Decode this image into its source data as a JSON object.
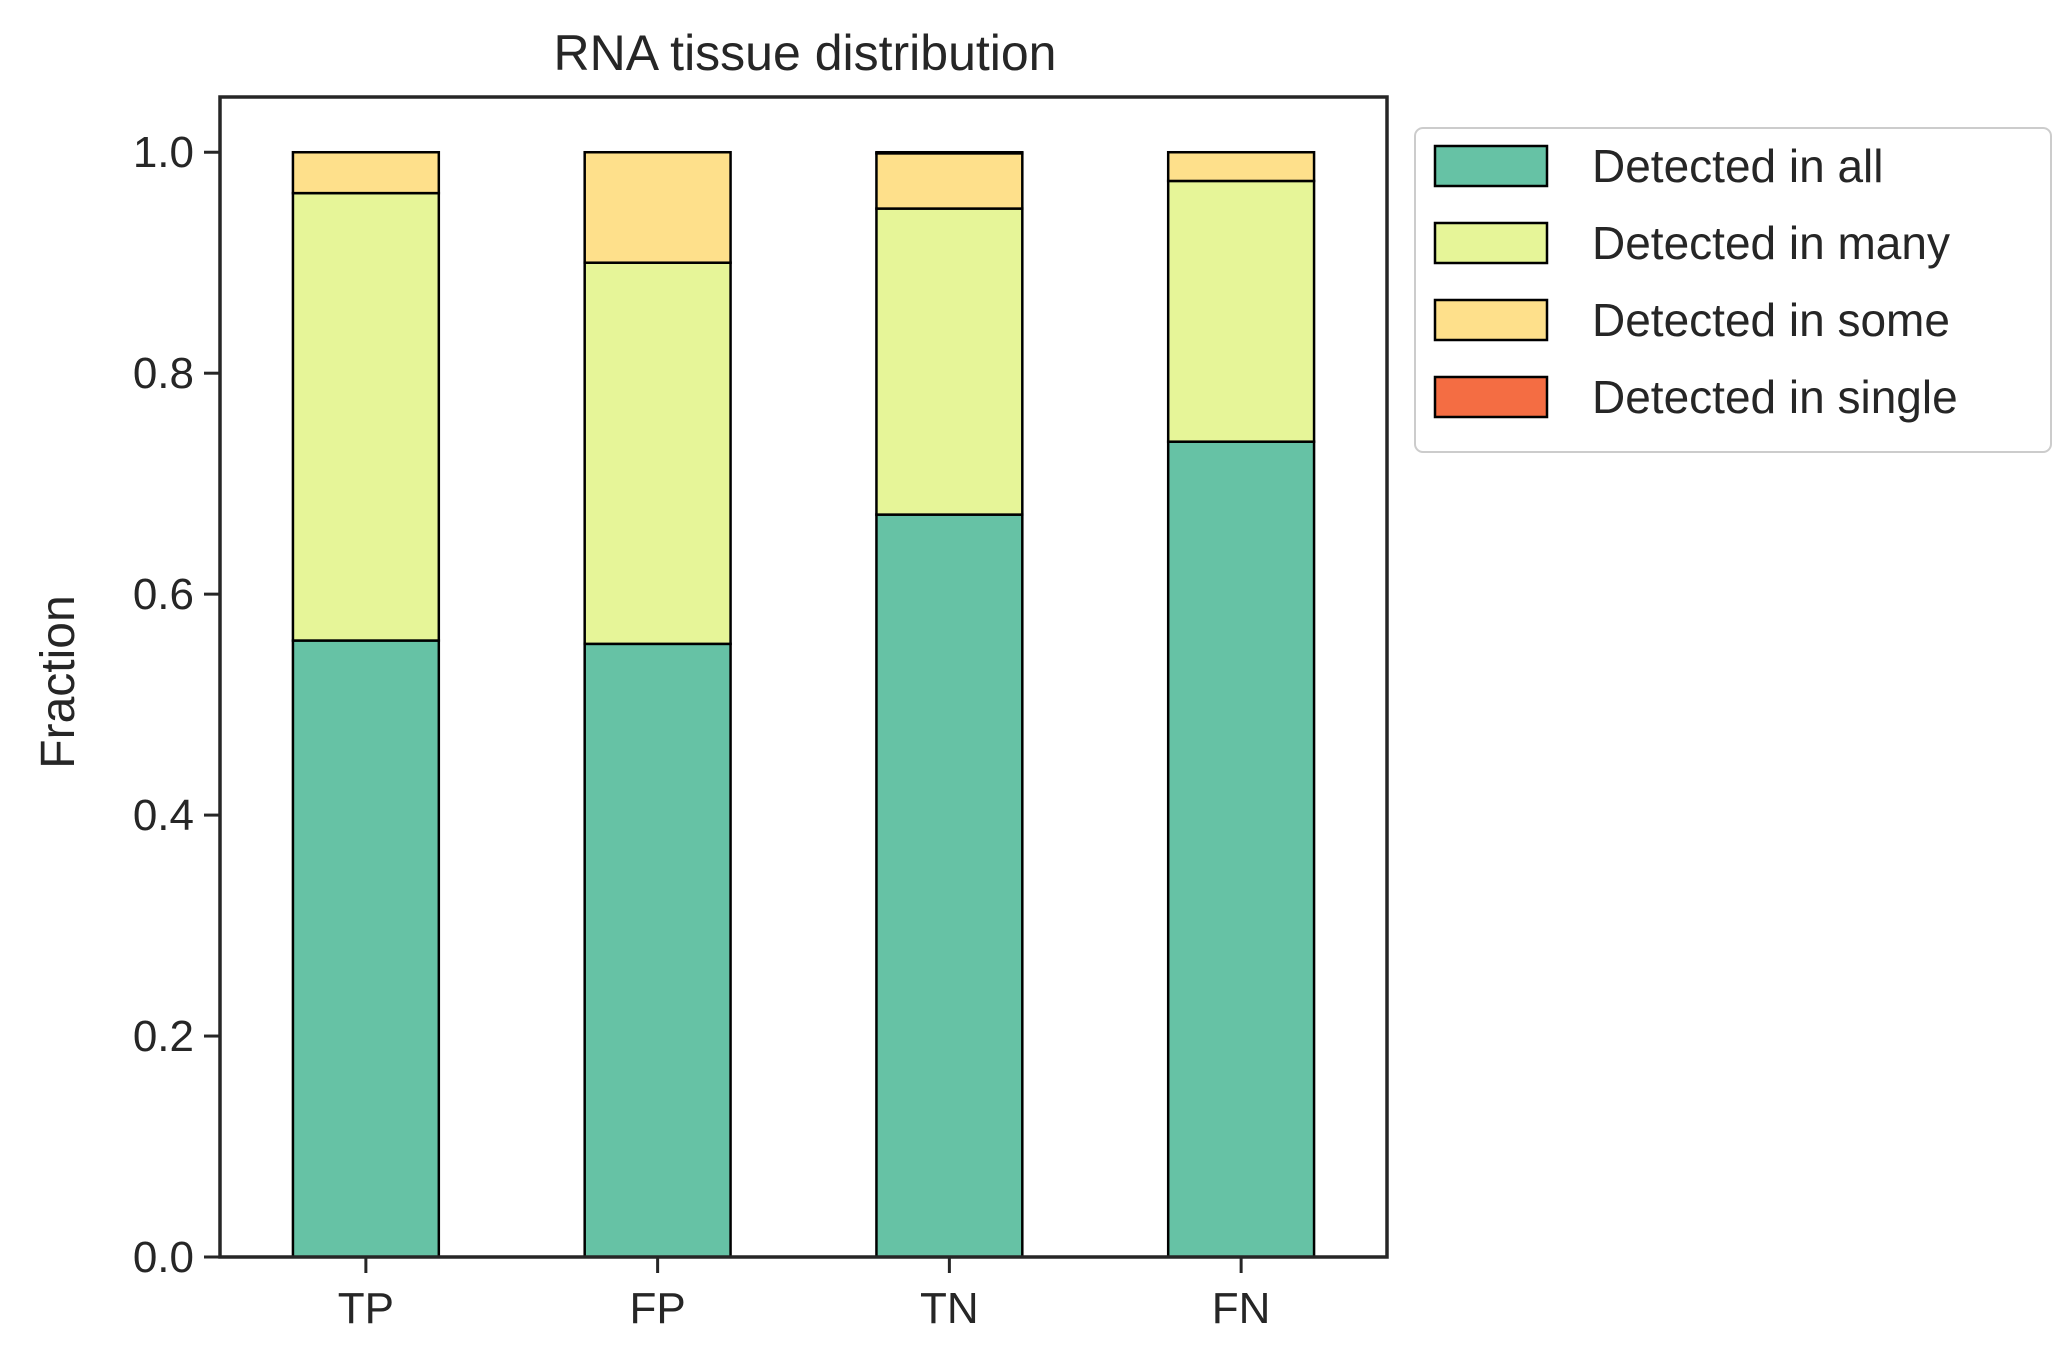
{
  "chart_data": {
    "type": "bar",
    "stacked": true,
    "title": "RNA tissue distribution",
    "xlabel": "",
    "ylabel": "Fraction",
    "categories": [
      "TP",
      "FP",
      "TN",
      "FN"
    ],
    "ylim": [
      0,
      1.05
    ],
    "yticks": [
      0.0,
      0.2,
      0.4,
      0.6,
      0.8,
      1.0
    ],
    "ytick_labels": [
      "0.0",
      "0.2",
      "0.4",
      "0.6",
      "0.8",
      "1.0"
    ],
    "grid": false,
    "legend_position": "outside-top-right",
    "series": [
      {
        "name": "Detected in all",
        "color": "#66c2a5",
        "values": [
          0.558,
          0.555,
          0.672,
          0.738
        ]
      },
      {
        "name": "Detected in many",
        "color": "#e6f598",
        "values": [
          0.405,
          0.345,
          0.277,
          0.236
        ]
      },
      {
        "name": "Detected in some",
        "color": "#fee08b",
        "values": [
          0.037,
          0.1,
          0.05,
          0.026
        ]
      },
      {
        "name": "Detected in single",
        "color": "#f46d43",
        "values": [
          0.0,
          0.0,
          0.001,
          0.0
        ]
      }
    ]
  }
}
